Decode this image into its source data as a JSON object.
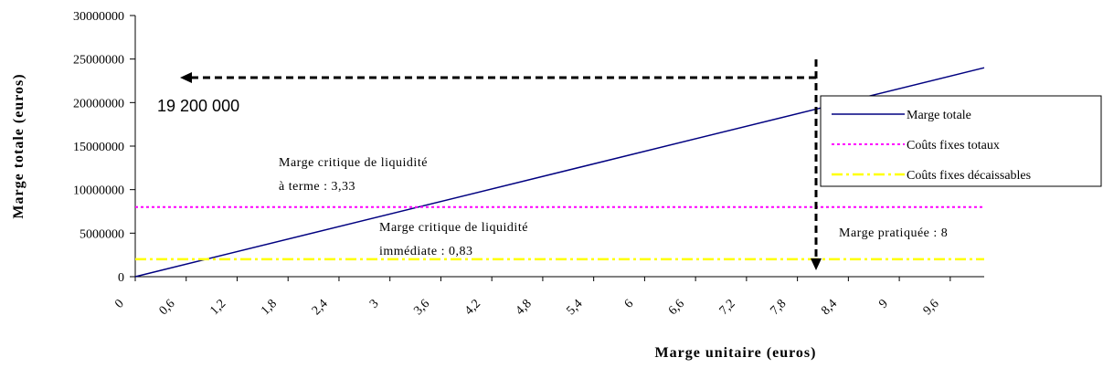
{
  "chart_data": {
    "type": "line",
    "xlabel": "Marge unitaire (euros)",
    "ylabel": "Marge totale (euros)",
    "xlim": [
      0,
      10
    ],
    "ylim": [
      0,
      30000000
    ],
    "yticks": [
      0,
      5000000,
      10000000,
      15000000,
      20000000,
      25000000,
      30000000
    ],
    "xticks": [
      0,
      {
        "value": 0.6,
        "label": "0,6"
      },
      {
        "value": 1.2,
        "label": "1,2"
      },
      {
        "value": 1.8,
        "label": "1,8"
      },
      {
        "value": 2.4,
        "label": "2,4"
      },
      3,
      {
        "value": 3.6,
        "label": "3,6"
      },
      {
        "value": 4.2,
        "label": "4,2"
      },
      {
        "value": 4.8,
        "label": "4,8"
      },
      {
        "value": 5.4,
        "label": "5,4"
      },
      6,
      {
        "value": 6.6,
        "label": "6,6"
      },
      {
        "value": 7.2,
        "label": "7,2"
      },
      {
        "value": 7.8,
        "label": "7,8"
      },
      {
        "value": 8.4,
        "label": "8,4"
      },
      9,
      {
        "value": 9.6,
        "label": "9,6"
      }
    ],
    "series": [
      {
        "name": "Marge totale",
        "color": "#000080",
        "x": [
          0,
          10
        ],
        "values": [
          0,
          24000000
        ]
      },
      {
        "name": "Coûts fixes totaux",
        "color": "#ff00ff",
        "x": [
          0,
          10
        ],
        "values": [
          8000000,
          8000000
        ]
      },
      {
        "name": "Coûts fixes décaissables",
        "color": "#ffff00",
        "x": [
          0,
          10
        ],
        "values": [
          2000000,
          2000000
        ]
      }
    ],
    "legend": "upper right",
    "annotations": [
      "19 200 000",
      "Marge critique de liquidité",
      "à terme : 3,33",
      "Marge critique de liquidité",
      "immédiate : 0,83",
      "Marge pratiquée : 8"
    ]
  }
}
